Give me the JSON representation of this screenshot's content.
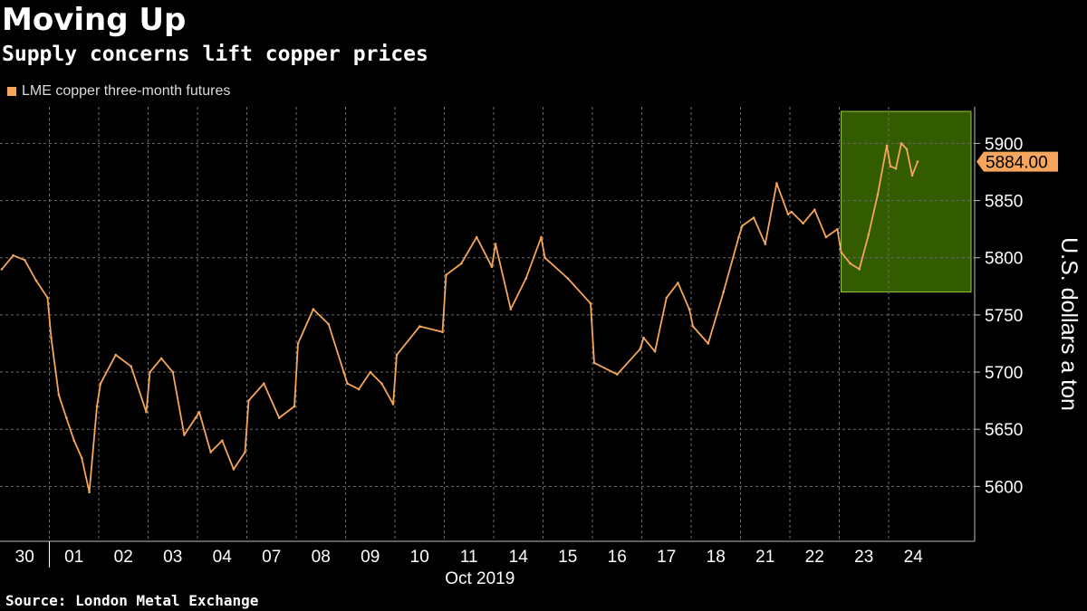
{
  "title": "Moving Up",
  "subtitle": "Supply concerns lift copper prices",
  "source": "Source: London Metal Exchange",
  "colors": {
    "background": "#000000",
    "series": "#f6a55c",
    "highlight_fill": "#335b00",
    "highlight_stroke": "#99c935",
    "last_value_badge": "#f6a55c",
    "grid": "#6e6e6e",
    "axis": "#bbbbbb"
  },
  "chart_data": {
    "type": "line",
    "title": "Moving Up",
    "subtitle": "Supply concerns lift copper prices",
    "legend": "LME copper three-month futures",
    "legend_position": "top-left",
    "ylabel": "U.S. dollars a ton",
    "y_axis_side": "right",
    "ylim": [
      5552,
      5932
    ],
    "yticks": [
      5600,
      5650,
      5700,
      5750,
      5800,
      5850,
      5900
    ],
    "grid": true,
    "last_value_label": "5884.00",
    "last_value": 5884.0,
    "x_tick_labels": [
      "30",
      "01",
      "02",
      "03",
      "04",
      "07",
      "08",
      "09",
      "10",
      "11",
      "14",
      "15",
      "16",
      "17",
      "18",
      "21",
      "22",
      "23",
      "24"
    ],
    "x_month_label": "Oct 2019",
    "highlight_period": {
      "from": "23 Oct 2019",
      "to": "24 Oct 2019",
      "y_range": [
        5770,
        5928
      ]
    },
    "series": [
      {
        "name": "LME copper three-month futures",
        "points": [
          [
            "30",
            5790
          ],
          [
            "30",
            5802
          ],
          [
            "30",
            5798
          ],
          [
            "30",
            5780
          ],
          [
            "30",
            5765
          ],
          [
            "01",
            5730
          ],
          [
            "01",
            5680
          ],
          [
            "01",
            5660
          ],
          [
            "01",
            5640
          ],
          [
            "01",
            5625
          ],
          [
            "01",
            5595
          ],
          [
            "01",
            5670
          ],
          [
            "02",
            5690
          ],
          [
            "02",
            5715
          ],
          [
            "02",
            5705
          ],
          [
            "02",
            5665
          ],
          [
            "03",
            5700
          ],
          [
            "03",
            5712
          ],
          [
            "03",
            5700
          ],
          [
            "03",
            5645
          ],
          [
            "03",
            5660
          ],
          [
            "04",
            5665
          ],
          [
            "04",
            5630
          ],
          [
            "04",
            5640
          ],
          [
            "04",
            5615
          ],
          [
            "04",
            5630
          ],
          [
            "07",
            5675
          ],
          [
            "07",
            5690
          ],
          [
            "07",
            5660
          ],
          [
            "07",
            5670
          ],
          [
            "08",
            5725
          ],
          [
            "08",
            5755
          ],
          [
            "08",
            5742
          ],
          [
            "08",
            5700
          ],
          [
            "09",
            5690
          ],
          [
            "09",
            5685
          ],
          [
            "09",
            5700
          ],
          [
            "09",
            5690
          ],
          [
            "09",
            5672
          ],
          [
            "10",
            5715
          ],
          [
            "10",
            5740
          ],
          [
            "10",
            5735
          ],
          [
            "11",
            5785
          ],
          [
            "11",
            5795
          ],
          [
            "11",
            5818
          ],
          [
            "11",
            5792
          ],
          [
            "14",
            5812
          ],
          [
            "14",
            5755
          ],
          [
            "14",
            5782
          ],
          [
            "14",
            5818
          ],
          [
            "15",
            5800
          ],
          [
            "15",
            5782
          ],
          [
            "15",
            5760
          ],
          [
            "16",
            5708
          ],
          [
            "16",
            5698
          ],
          [
            "16",
            5720
          ],
          [
            "17",
            5730
          ],
          [
            "17",
            5718
          ],
          [
            "17",
            5765
          ],
          [
            "17",
            5778
          ],
          [
            "17",
            5755
          ],
          [
            "18",
            5740
          ],
          [
            "18",
            5725
          ],
          [
            "18",
            5770
          ],
          [
            "18",
            5818
          ],
          [
            "21",
            5828
          ],
          [
            "21",
            5835
          ],
          [
            "21",
            5812
          ],
          [
            "21",
            5865
          ],
          [
            "21",
            5838
          ],
          [
            "22",
            5840
          ],
          [
            "22",
            5830
          ],
          [
            "22",
            5842
          ],
          [
            "22",
            5818
          ],
          [
            "22",
            5825
          ],
          [
            "23",
            5805
          ],
          [
            "23",
            5795
          ],
          [
            "23",
            5790
          ],
          [
            "23",
            5820
          ],
          [
            "23",
            5855
          ],
          [
            "23",
            5898
          ],
          [
            "24",
            5880
          ],
          [
            "24",
            5878
          ],
          [
            "24",
            5900
          ],
          [
            "24",
            5895
          ],
          [
            "24",
            5872
          ],
          [
            "24",
            5884
          ]
        ]
      }
    ]
  }
}
